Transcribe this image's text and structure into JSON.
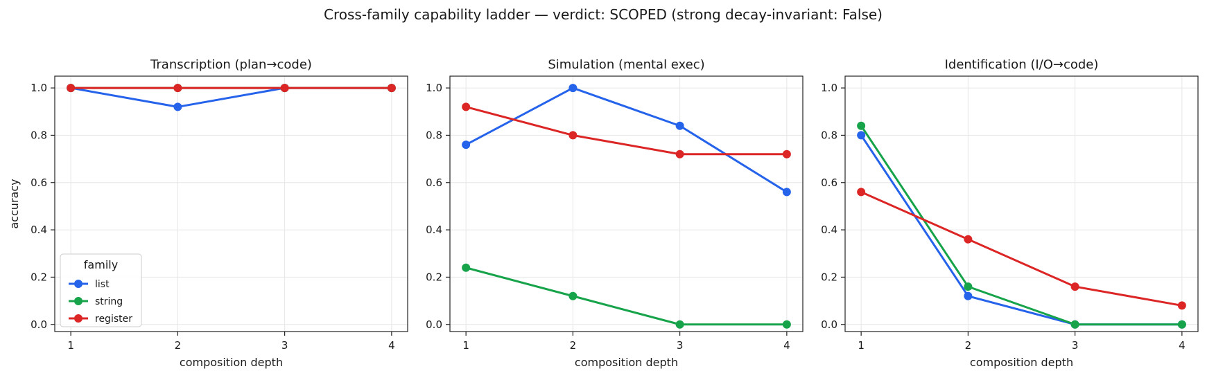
{
  "figure_title": "Cross-family capability ladder — verdict: SCOPED  (strong decay-invariant: False)",
  "colors": {
    "list": "#2563eb",
    "string": "#16a34a",
    "register": "#dc2626"
  },
  "chart_data": [
    {
      "type": "line",
      "title": "Transcription (plan→code)",
      "xlabel": "composition depth",
      "ylabel": "accuracy",
      "x": [
        1,
        2,
        3,
        4
      ],
      "xticks": [
        "1",
        "2",
        "3",
        "4"
      ],
      "yticks": [
        "0.0",
        "0.2",
        "0.4",
        "0.6",
        "0.8",
        "1.0"
      ],
      "xlim": [
        0.85,
        4.15
      ],
      "ylim": [
        -0.03,
        1.05
      ],
      "grid": true,
      "legend": {
        "title": "family",
        "placement": "lower-left",
        "entries": [
          "list",
          "string",
          "register"
        ]
      },
      "series": [
        {
          "name": "list",
          "values": [
            1.0,
            0.92,
            1.0,
            1.0
          ]
        },
        {
          "name": "string",
          "values": [
            1.0,
            1.0,
            1.0,
            1.0
          ]
        },
        {
          "name": "register",
          "values": [
            1.0,
            1.0,
            1.0,
            1.0
          ]
        }
      ]
    },
    {
      "type": "line",
      "title": "Simulation (mental exec)",
      "xlabel": "composition depth",
      "ylabel": "",
      "x": [
        1,
        2,
        3,
        4
      ],
      "xticks": [
        "1",
        "2",
        "3",
        "4"
      ],
      "yticks": [
        "0.0",
        "0.2",
        "0.4",
        "0.6",
        "0.8",
        "1.0"
      ],
      "xlim": [
        0.85,
        4.15
      ],
      "ylim": [
        -0.03,
        1.05
      ],
      "grid": true,
      "series": [
        {
          "name": "list",
          "values": [
            0.76,
            1.0,
            0.84,
            0.56
          ]
        },
        {
          "name": "string",
          "values": [
            0.24,
            0.12,
            0.0,
            0.0
          ]
        },
        {
          "name": "register",
          "values": [
            0.92,
            0.8,
            0.72,
            0.72
          ]
        }
      ]
    },
    {
      "type": "line",
      "title": "Identification (I/O→code)",
      "xlabel": "composition depth",
      "ylabel": "",
      "x": [
        1,
        2,
        3,
        4
      ],
      "xticks": [
        "1",
        "2",
        "3",
        "4"
      ],
      "yticks": [
        "0.0",
        "0.2",
        "0.4",
        "0.6",
        "0.8",
        "1.0"
      ],
      "xlim": [
        0.85,
        4.15
      ],
      "ylim": [
        -0.03,
        1.05
      ],
      "grid": true,
      "series": [
        {
          "name": "list",
          "values": [
            0.8,
            0.12,
            0.0,
            0.0
          ]
        },
        {
          "name": "string",
          "values": [
            0.84,
            0.16,
            0.0,
            0.0
          ]
        },
        {
          "name": "register",
          "values": [
            0.56,
            0.36,
            0.16,
            0.08
          ]
        }
      ]
    }
  ]
}
